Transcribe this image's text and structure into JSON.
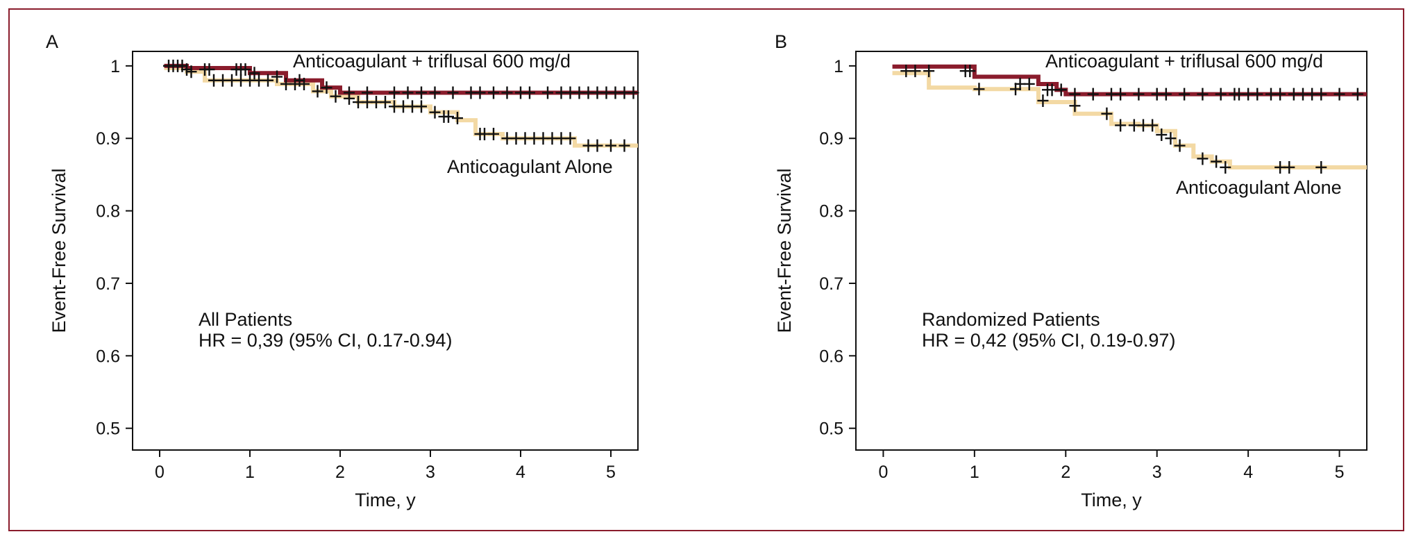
{
  "colors": {
    "treated": "#8a1c2c",
    "control": "#f3d9a4",
    "censor": "#111111",
    "frame": "#8a1c2c"
  },
  "chart_data": [
    {
      "type": "line",
      "panel_label": "A",
      "xlabel": "Time, y",
      "ylabel": "Event-Free Survival",
      "xlim": [
        -0.3,
        5.3
      ],
      "ylim": [
        0.47,
        1.02
      ],
      "x_ticks": [
        "0",
        "1",
        "2",
        "3",
        "4",
        "5"
      ],
      "y_ticks": [
        "0.5",
        "0.6",
        "0.7",
        "0.8",
        "0.9",
        "1"
      ],
      "annotations": [
        "All Patients",
        "HR = 0,39 (95% CI, 0.17-0.94)"
      ],
      "series": [
        {
          "name": "Anticoagulant + triflusal 600 mg/d",
          "x": [
            0.05,
            0.3,
            1.0,
            1.4,
            1.8,
            2.0,
            5.3
          ],
          "y": [
            1.0,
            0.997,
            0.99,
            0.98,
            0.97,
            0.963,
            0.963
          ],
          "censored": [
            [
              0.1,
              1.0
            ],
            [
              0.15,
              1.0
            ],
            [
              0.2,
              1.0
            ],
            [
              0.25,
              1.0
            ],
            [
              0.5,
              0.995
            ],
            [
              0.55,
              0.995
            ],
            [
              0.85,
              0.995
            ],
            [
              0.9,
              0.995
            ],
            [
              0.95,
              0.995
            ],
            [
              1.05,
              0.99
            ],
            [
              1.3,
              0.985
            ],
            [
              1.55,
              0.98
            ],
            [
              1.85,
              0.97
            ],
            [
              2.1,
              0.963
            ],
            [
              2.3,
              0.963
            ],
            [
              2.6,
              0.963
            ],
            [
              2.75,
              0.963
            ],
            [
              2.9,
              0.963
            ],
            [
              3.05,
              0.963
            ],
            [
              3.25,
              0.963
            ],
            [
              3.45,
              0.963
            ],
            [
              3.55,
              0.963
            ],
            [
              3.7,
              0.963
            ],
            [
              3.85,
              0.963
            ],
            [
              4.0,
              0.963
            ],
            [
              4.1,
              0.963
            ],
            [
              4.3,
              0.963
            ],
            [
              4.45,
              0.963
            ],
            [
              4.55,
              0.963
            ],
            [
              4.65,
              0.963
            ],
            [
              4.75,
              0.963
            ],
            [
              4.85,
              0.963
            ],
            [
              4.95,
              0.963
            ],
            [
              5.05,
              0.963
            ],
            [
              5.15,
              0.963
            ],
            [
              5.25,
              0.963
            ]
          ]
        },
        {
          "name": "Anticoagulant Alone",
          "x": [
            0.05,
            0.3,
            0.5,
            1.3,
            1.7,
            1.9,
            2.2,
            2.6,
            3.0,
            3.3,
            3.5,
            3.8,
            4.6,
            5.3
          ],
          "y": [
            0.997,
            0.992,
            0.98,
            0.975,
            0.965,
            0.958,
            0.95,
            0.944,
            0.936,
            0.925,
            0.906,
            0.9,
            0.89,
            0.89
          ],
          "censored": [
            [
              0.3,
              0.995
            ],
            [
              0.35,
              0.992
            ],
            [
              0.6,
              0.98
            ],
            [
              0.7,
              0.98
            ],
            [
              0.8,
              0.98
            ],
            [
              0.9,
              0.98
            ],
            [
              1.0,
              0.98
            ],
            [
              1.1,
              0.98
            ],
            [
              1.2,
              0.98
            ],
            [
              1.4,
              0.975
            ],
            [
              1.5,
              0.975
            ],
            [
              1.6,
              0.975
            ],
            [
              1.75,
              0.965
            ],
            [
              1.95,
              0.958
            ],
            [
              2.1,
              0.955
            ],
            [
              2.2,
              0.95
            ],
            [
              2.3,
              0.95
            ],
            [
              2.4,
              0.95
            ],
            [
              2.5,
              0.95
            ],
            [
              2.6,
              0.944
            ],
            [
              2.7,
              0.944
            ],
            [
              2.8,
              0.944
            ],
            [
              2.9,
              0.944
            ],
            [
              3.05,
              0.936
            ],
            [
              3.15,
              0.93
            ],
            [
              3.2,
              0.93
            ],
            [
              3.3,
              0.928
            ],
            [
              3.55,
              0.906
            ],
            [
              3.6,
              0.906
            ],
            [
              3.7,
              0.906
            ],
            [
              3.85,
              0.9
            ],
            [
              3.95,
              0.9
            ],
            [
              4.05,
              0.9
            ],
            [
              4.15,
              0.9
            ],
            [
              4.25,
              0.9
            ],
            [
              4.35,
              0.9
            ],
            [
              4.45,
              0.9
            ],
            [
              4.55,
              0.9
            ],
            [
              4.75,
              0.89
            ],
            [
              4.85,
              0.89
            ],
            [
              5.0,
              0.89
            ],
            [
              5.15,
              0.89
            ]
          ]
        }
      ]
    },
    {
      "type": "line",
      "panel_label": "B",
      "xlabel": "Time, y",
      "ylabel": "Event-Free Survival",
      "xlim": [
        -0.3,
        5.3
      ],
      "ylim": [
        0.47,
        1.02
      ],
      "x_ticks": [
        "0",
        "1",
        "2",
        "3",
        "4",
        "5"
      ],
      "y_ticks": [
        "0.5",
        "0.6",
        "0.7",
        "0.8",
        "0.9",
        "1"
      ],
      "annotations": [
        "Randomized Patients",
        "HR = 0,42 (95% CI, 0.19-0.97)"
      ],
      "series": [
        {
          "name": "Anticoagulant + triflusal 600 mg/d",
          "x": [
            0.1,
            1.0,
            1.7,
            1.9,
            2.0,
            5.3
          ],
          "y": [
            0.999,
            0.985,
            0.975,
            0.967,
            0.961,
            0.961
          ],
          "censored": [
            [
              0.25,
              0.993
            ],
            [
              0.35,
              0.993
            ],
            [
              0.5,
              0.993
            ],
            [
              0.9,
              0.993
            ],
            [
              0.95,
              0.993
            ],
            [
              1.5,
              0.975
            ],
            [
              1.6,
              0.975
            ],
            [
              1.8,
              0.967
            ],
            [
              1.85,
              0.967
            ],
            [
              1.95,
              0.967
            ],
            [
              2.1,
              0.961
            ],
            [
              2.3,
              0.961
            ],
            [
              2.5,
              0.961
            ],
            [
              2.6,
              0.961
            ],
            [
              2.8,
              0.961
            ],
            [
              3.0,
              0.961
            ],
            [
              3.1,
              0.961
            ],
            [
              3.3,
              0.961
            ],
            [
              3.5,
              0.961
            ],
            [
              3.7,
              0.961
            ],
            [
              3.85,
              0.961
            ],
            [
              3.9,
              0.961
            ],
            [
              4.0,
              0.961
            ],
            [
              4.1,
              0.961
            ],
            [
              4.25,
              0.961
            ],
            [
              4.35,
              0.961
            ],
            [
              4.5,
              0.961
            ],
            [
              4.6,
              0.961
            ],
            [
              4.7,
              0.961
            ],
            [
              4.8,
              0.961
            ],
            [
              5.0,
              0.961
            ],
            [
              5.2,
              0.961
            ]
          ]
        },
        {
          "name": "Anticoagulant Alone",
          "x": [
            0.1,
            0.5,
            1.0,
            1.7,
            2.1,
            2.5,
            2.8,
            3.0,
            3.2,
            3.4,
            3.6,
            3.8,
            5.3
          ],
          "y": [
            0.99,
            0.97,
            0.968,
            0.95,
            0.934,
            0.92,
            0.918,
            0.91,
            0.89,
            0.875,
            0.868,
            0.86,
            0.86
          ],
          "censored": [
            [
              1.05,
              0.968
            ],
            [
              1.45,
              0.968
            ],
            [
              1.75,
              0.952
            ],
            [
              2.1,
              0.945
            ],
            [
              2.45,
              0.934
            ],
            [
              2.6,
              0.918
            ],
            [
              2.75,
              0.918
            ],
            [
              2.85,
              0.918
            ],
            [
              2.95,
              0.918
            ],
            [
              3.05,
              0.905
            ],
            [
              3.15,
              0.9
            ],
            [
              3.25,
              0.89
            ],
            [
              3.5,
              0.872
            ],
            [
              3.65,
              0.868
            ],
            [
              3.75,
              0.86
            ],
            [
              4.35,
              0.86
            ],
            [
              4.45,
              0.86
            ],
            [
              4.8,
              0.86
            ]
          ]
        }
      ]
    }
  ]
}
